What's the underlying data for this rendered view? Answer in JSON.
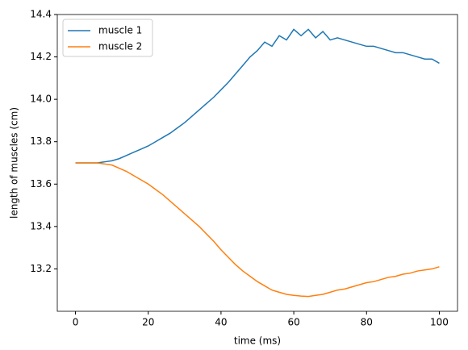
{
  "chart_data": {
    "type": "line",
    "xlabel": "time (ms)",
    "ylabel": "length of muscles (cm)",
    "x": [
      0,
      2,
      4,
      6,
      8,
      10,
      12,
      14,
      16,
      18,
      20,
      22,
      24,
      26,
      28,
      30,
      32,
      34,
      36,
      38,
      40,
      42,
      44,
      46,
      48,
      50,
      52,
      54,
      56,
      58,
      60,
      62,
      64,
      66,
      68,
      70,
      72,
      74,
      76,
      78,
      80,
      82,
      84,
      86,
      88,
      90,
      92,
      94,
      96,
      98,
      100
    ],
    "series": [
      {
        "name": "muscle 1",
        "color": "#1f77b4",
        "values": [
          13.7,
          13.7,
          13.7,
          13.7,
          13.705,
          13.71,
          13.72,
          13.735,
          13.75,
          13.765,
          13.78,
          13.8,
          13.82,
          13.84,
          13.865,
          13.89,
          13.92,
          13.95,
          13.98,
          14.01,
          14.045,
          14.08,
          14.12,
          14.16,
          14.2,
          14.23,
          14.27,
          14.25,
          14.3,
          14.28,
          14.33,
          14.3,
          14.33,
          14.29,
          14.32,
          14.28,
          14.29,
          14.28,
          14.27,
          14.26,
          14.25,
          14.25,
          14.24,
          14.23,
          14.22,
          14.22,
          14.21,
          14.2,
          14.19,
          14.19,
          14.17
        ]
      },
      {
        "name": "muscle 2",
        "color": "#ff7f0e",
        "values": [
          13.7,
          13.7,
          13.7,
          13.7,
          13.695,
          13.69,
          13.675,
          13.66,
          13.64,
          13.62,
          13.6,
          13.575,
          13.55,
          13.52,
          13.49,
          13.46,
          13.43,
          13.4,
          13.365,
          13.33,
          13.29,
          13.255,
          13.22,
          13.19,
          13.165,
          13.14,
          13.12,
          13.1,
          13.09,
          13.08,
          13.075,
          13.072,
          13.07,
          13.075,
          13.08,
          13.09,
          13.1,
          13.105,
          13.115,
          13.125,
          13.135,
          13.14,
          13.15,
          13.16,
          13.165,
          13.175,
          13.18,
          13.19,
          13.195,
          13.2,
          13.21
        ]
      }
    ],
    "xlim": [
      -5,
      105
    ],
    "xticks": [
      0,
      20,
      40,
      60,
      80,
      100
    ],
    "ylim": [
      13.0,
      14.4
    ],
    "yticks": [
      13.2,
      13.4,
      13.6,
      13.8,
      {
        "value": 14,
        "label": "14.0"
      },
      14.2,
      14.4
    ],
    "legend": "upper left"
  }
}
